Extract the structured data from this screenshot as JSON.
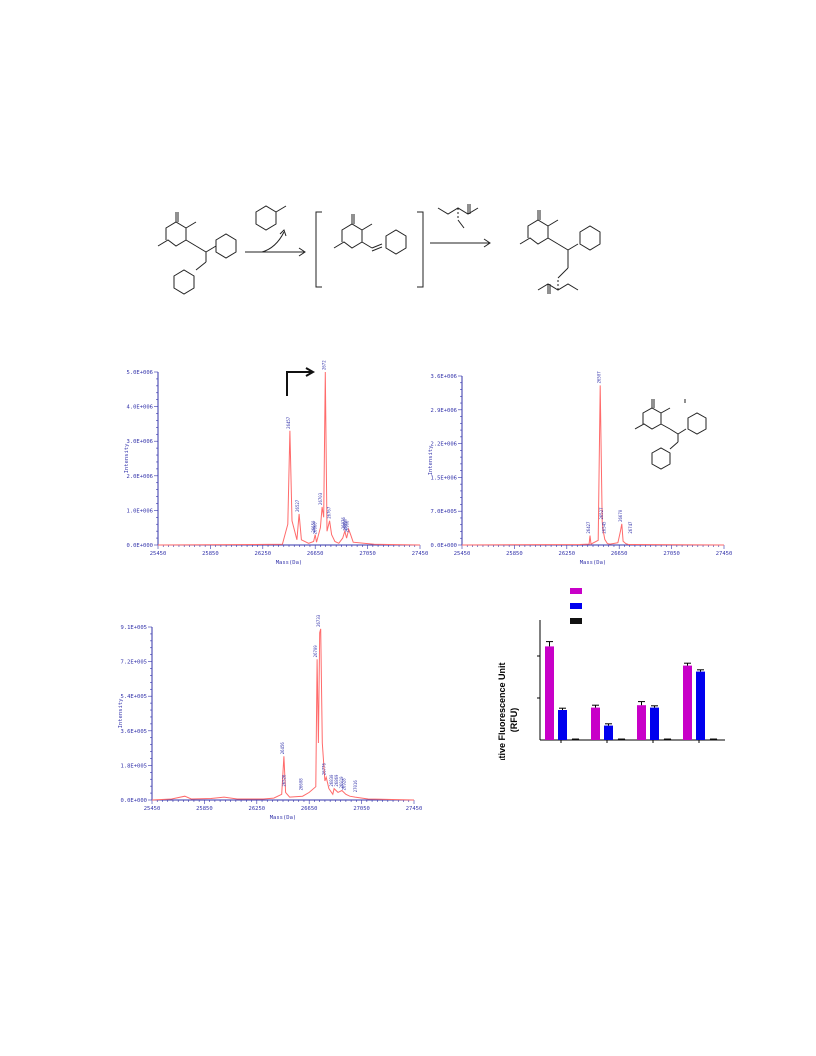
{
  "colors": {
    "spectrum_line": "#ff6b6b",
    "axis": "#3333aa",
    "bar_magenta": "#c800c8",
    "bar_blue": "#0000ee",
    "bar_black": "#111111"
  },
  "scheme": {
    "type": "reaction-scheme"
  },
  "chart_data": [
    {
      "type": "line",
      "xlabel": "Mass(Da)",
      "ylabel": "Intensity",
      "xticks": [
        "25450",
        "25850",
        "26250",
        "26650",
        "27050",
        "27450"
      ],
      "yticks": [
        "0.0E+000",
        "1.0E+006",
        "2.0E+006",
        "3.0E+006",
        "4.0E+006",
        "5.0E+006"
      ],
      "xlim": [
        25450,
        27450
      ],
      "ylim": [
        0,
        5000000
      ],
      "series": [
        {
          "x": [
            25450,
            26400,
            26441,
            26457,
            26473,
            26510,
            26527,
            26545,
            26600,
            26638,
            26650,
            26660,
            26690,
            26703,
            26715,
            26727,
            26740,
            26760,
            26775,
            26800,
            26830,
            26860,
            26876,
            26890,
            26906,
            26920,
            26940,
            27100,
            27450
          ],
          "y": [
            0,
            20000,
            600000,
            3300000,
            700000,
            150000,
            900000,
            150000,
            50000,
            100000,
            300000,
            80000,
            500000,
            1100000,
            800000,
            5000000,
            400000,
            700000,
            300000,
            100000,
            50000,
            200000,
            400000,
            200000,
            450000,
            300000,
            80000,
            20000,
            0
          ]
        }
      ],
      "peak_labels": [
        {
          "x": 26457,
          "y": 3300000,
          "text": "26457"
        },
        {
          "x": 26527,
          "y": 900000,
          "text": "26527"
        },
        {
          "x": 26650,
          "y": 300000,
          "text": "26650"
        },
        {
          "x": 26660,
          "y": 250000,
          "text": "26660"
        },
        {
          "x": 26703,
          "y": 1100000,
          "text": "26703"
        },
        {
          "x": 26727,
          "y": 5000000,
          "text": "26727"
        },
        {
          "x": 26767,
          "y": 700000,
          "text": "26767"
        },
        {
          "x": 26876,
          "y": 400000,
          "text": "26876"
        },
        {
          "x": 26890,
          "y": 350000,
          "text": "26890"
        },
        {
          "x": 26906,
          "y": 300000,
          "text": "26906"
        }
      ]
    },
    {
      "type": "line",
      "xlabel": "Mass(Da)",
      "ylabel": "Intensity",
      "xticks": [
        "25450",
        "25850",
        "26250",
        "26650",
        "27050",
        "27450"
      ],
      "yticks": [
        "0.0E+000",
        "7.0E+005",
        "1.5E+006",
        "2.2E+006",
        "2.9E+006",
        "3.6E+006"
      ],
      "xlim": [
        25450,
        27450
      ],
      "ylim": [
        0,
        3600000
      ],
      "series": [
        {
          "x": [
            25450,
            26350,
            26420,
            26427,
            26435,
            26490,
            26505,
            26520,
            26528,
            26540,
            26560,
            26580,
            26640,
            26660,
            26670,
            26680,
            26700,
            26720,
            27450
          ],
          "y": [
            0,
            10000,
            20000,
            200000,
            20000,
            100000,
            3400000,
            500000,
            300000,
            120000,
            30000,
            20000,
            50000,
            300000,
            450000,
            80000,
            30000,
            10000,
            0
          ]
        }
      ],
      "peak_labels": [
        {
          "x": 26427,
          "y": 200000,
          "text": "26427"
        },
        {
          "x": 26507,
          "y": 3400000,
          "text": "26507"
        },
        {
          "x": 26527,
          "y": 500000,
          "text": "26527"
        },
        {
          "x": 26545,
          "y": 200000,
          "text": "26545"
        },
        {
          "x": 26670,
          "y": 450000,
          "text": "26670"
        },
        {
          "x": 26747,
          "y": 200000,
          "text": "26747"
        }
      ]
    },
    {
      "type": "line",
      "xlabel": "Mass(Da)",
      "ylabel": "Intensity",
      "xticks": [
        "25450",
        "25850",
        "26250",
        "26650",
        "27050",
        "27450"
      ],
      "yticks": [
        "0.0E+000",
        "1.8E+005",
        "3.6E+005",
        "5.4E+005",
        "7.2E+005",
        "9.1E+005"
      ],
      "xlim": [
        25450,
        27450
      ],
      "ylim": [
        0,
        910000
      ],
      "series": [
        {
          "x": [
            25450,
            25600,
            25700,
            25750,
            25900,
            26000,
            26100,
            26300,
            26380,
            26440,
            26457,
            26470,
            26500,
            26600,
            26650,
            26700,
            26710,
            26720,
            26730,
            26738,
            26750,
            26770,
            26780,
            26800,
            26830,
            26840,
            26870,
            26900,
            26930,
            26960,
            27000,
            27100,
            27450
          ],
          "y": [
            0,
            5000,
            20000,
            5000,
            8000,
            15000,
            5000,
            5000,
            10000,
            30000,
            230000,
            40000,
            15000,
            20000,
            40000,
            70000,
            740000,
            300000,
            880000,
            900000,
            300000,
            100000,
            120000,
            60000,
            30000,
            60000,
            40000,
            50000,
            30000,
            20000,
            15000,
            5000,
            0
          ]
        }
      ],
      "peak_labels": [
        {
          "x": 26456,
          "y": 230000,
          "text": "26456"
        },
        {
          "x": 26470,
          "y": 60000,
          "text": "26526"
        },
        {
          "x": 26600,
          "y": 40000,
          "text": "26608"
        },
        {
          "x": 26709,
          "y": 740000,
          "text": "26709"
        },
        {
          "x": 26733,
          "y": 900000,
          "text": "26733"
        },
        {
          "x": 26776,
          "y": 120000,
          "text": "26776"
        },
        {
          "x": 26830,
          "y": 60000,
          "text": "26830"
        },
        {
          "x": 26869,
          "y": 60000,
          "text": "26869"
        },
        {
          "x": 26910,
          "y": 50000,
          "text": "26919"
        },
        {
          "x": 26928,
          "y": 40000,
          "text": "26928"
        },
        {
          "x": 27016,
          "y": 30000,
          "text": "27016"
        }
      ]
    },
    {
      "type": "bar",
      "ylabel": "Relative Fluorescence Unit (RFU)",
      "ylabel_lines": [
        "Relative Fluorescence Unit",
        "(RFU)"
      ],
      "categories": [
        "",
        "",
        "",
        ""
      ],
      "series": [
        {
          "values": [
            0.78,
            0.27,
            0.29,
            0.62
          ],
          "errors": [
            0.04,
            0.02,
            0.03,
            0.02
          ]
        },
        {
          "values": [
            0.25,
            0.12,
            0.27,
            0.57
          ],
          "errors": [
            0.015,
            0.015,
            0.015,
            0.015
          ]
        },
        {
          "values": [
            0.005,
            0.005,
            0.005,
            0.005
          ],
          "errors": [
            0.003,
            0.003,
            0.003,
            0.003
          ]
        }
      ],
      "ylim": [
        0,
        1
      ],
      "legend": "top-left",
      "grid": false
    }
  ]
}
